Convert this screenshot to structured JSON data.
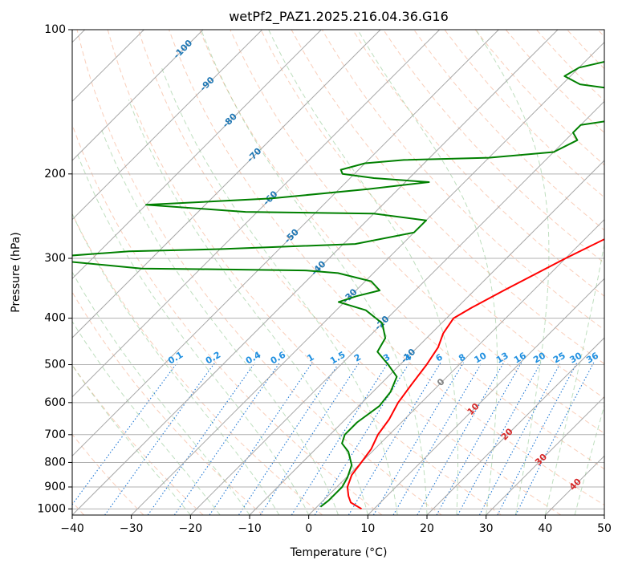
{
  "chart_data": {
    "type": "line",
    "title": "wetPf2_PAZ1.2025.216.04.36.G16",
    "xlabel": "Temperature (°C)",
    "ylabel": "Pressure (hPa)",
    "xlim": [
      -40,
      50
    ],
    "ylim": [
      1030,
      100
    ],
    "y_scale": "log",
    "grid": true,
    "x_ticks": [
      "−40",
      "−30",
      "−20",
      "−10",
      "0",
      "10",
      "20",
      "30",
      "40",
      "50"
    ],
    "y_ticks": [
      {
        "p": 100,
        "label": "100"
      },
      {
        "p": 200,
        "label": "200"
      },
      {
        "p": 300,
        "label": "300"
      },
      {
        "p": 400,
        "label": "400"
      },
      {
        "p": 500,
        "label": "500"
      },
      {
        "p": 600,
        "label": "600"
      },
      {
        "p": 700,
        "label": "700"
      },
      {
        "p": 800,
        "label": "800"
      },
      {
        "p": 900,
        "label": "900"
      },
      {
        "p": 1000,
        "label": "1000"
      }
    ],
    "series": [
      {
        "color": "#ff0000",
        "points": [
          {
            "t": 7.9,
            "p": 1000
          },
          {
            "t": 5.0,
            "p": 970
          },
          {
            "t": 3.5,
            "p": 940
          },
          {
            "t": 1.8,
            "p": 900
          },
          {
            "t": 0.5,
            "p": 850
          },
          {
            "t": 0.0,
            "p": 800
          },
          {
            "t": -0.6,
            "p": 750
          },
          {
            "t": -1.9,
            "p": 700
          },
          {
            "t": -2.6,
            "p": 650
          },
          {
            "t": -3.9,
            "p": 600
          },
          {
            "t": -4.7,
            "p": 550
          },
          {
            "t": -5.5,
            "p": 500
          },
          {
            "t": -6.5,
            "p": 460
          },
          {
            "t": -8.0,
            "p": 430
          },
          {
            "t": -8.8,
            "p": 400
          },
          {
            "t": -7.5,
            "p": 380
          },
          {
            "t": -5.0,
            "p": 350
          },
          {
            "t": 0.0,
            "p": 300
          },
          {
            "t": 4.5,
            "p": 265
          },
          {
            "t": 8.0,
            "p": 240
          },
          {
            "t": 12.0,
            "p": 200
          },
          {
            "t": 15.0,
            "p": 175
          },
          {
            "t": 17.5,
            "p": 155
          },
          {
            "t": 20.5,
            "p": 140
          },
          {
            "t": 24.0,
            "p": 125
          },
          {
            "t": 26.0,
            "p": 115
          },
          {
            "t": 27.0,
            "p": 107
          },
          {
            "t": 27.5,
            "p": 100
          }
        ]
      },
      {
        "color": "#008000",
        "points": [
          {
            "t": 0.6,
            "p": 990
          },
          {
            "t": 0.9,
            "p": 960
          },
          {
            "t": 0.9,
            "p": 900
          },
          {
            "t": 0.2,
            "p": 860
          },
          {
            "t": -1.2,
            "p": 810
          },
          {
            "t": -4.0,
            "p": 760
          },
          {
            "t": -6.5,
            "p": 730
          },
          {
            "t": -7.5,
            "p": 700
          },
          {
            "t": -7.5,
            "p": 660
          },
          {
            "t": -6.5,
            "p": 610
          },
          {
            "t": -7.0,
            "p": 570
          },
          {
            "t": -8.5,
            "p": 530
          },
          {
            "t": -12.0,
            "p": 500
          },
          {
            "t": -16.0,
            "p": 470
          },
          {
            "t": -17.0,
            "p": 440
          },
          {
            "t": -20.0,
            "p": 410
          },
          {
            "t": -25.0,
            "p": 385
          },
          {
            "t": -31.0,
            "p": 370
          },
          {
            "t": -29.0,
            "p": 360
          },
          {
            "t": -26.0,
            "p": 350
          },
          {
            "t": -29.0,
            "p": 335
          },
          {
            "t": -36.0,
            "p": 322
          },
          {
            "t": -42.0,
            "p": 318
          },
          {
            "t": -60.0,
            "p": 316
          },
          {
            "t": -70.0,
            "p": 315
          },
          {
            "t": -90.0,
            "p": 300
          },
          {
            "t": -75.0,
            "p": 290
          },
          {
            "t": -60.0,
            "p": 287
          },
          {
            "t": -38.0,
            "p": 280
          },
          {
            "t": -30.0,
            "p": 265
          },
          {
            "t": -30.0,
            "p": 250
          },
          {
            "t": -40.0,
            "p": 242
          },
          {
            "t": -62.0,
            "p": 240
          },
          {
            "t": -80.0,
            "p": 232
          },
          {
            "t": -60.0,
            "p": 225
          },
          {
            "t": -45.0,
            "p": 215
          },
          {
            "t": -36.0,
            "p": 208
          },
          {
            "t": -46.0,
            "p": 204
          },
          {
            "t": -52.0,
            "p": 200
          },
          {
            "t": -53.0,
            "p": 196
          },
          {
            "t": -50.0,
            "p": 190
          },
          {
            "t": -44.0,
            "p": 187
          },
          {
            "t": -30.0,
            "p": 185
          },
          {
            "t": -20.0,
            "p": 180
          },
          {
            "t": -18.0,
            "p": 170
          },
          {
            "t": -20.0,
            "p": 164
          },
          {
            "t": -20.0,
            "p": 158
          },
          {
            "t": -12.0,
            "p": 152
          },
          {
            "t": -10.0,
            "p": 143
          },
          {
            "t": -16.0,
            "p": 135
          },
          {
            "t": -27.0,
            "p": 130
          },
          {
            "t": -31.0,
            "p": 125
          },
          {
            "t": -30.0,
            "p": 120
          },
          {
            "t": -25.0,
            "p": 115
          },
          {
            "t": -14.0,
            "p": 107
          },
          {
            "t": -4.5,
            "p": 100
          }
        ]
      }
    ],
    "mixing_ratio_labels": [
      "0.1",
      "0.2",
      "0.4",
      "0.6",
      "1",
      "1.5",
      "2",
      "3",
      "4",
      "6",
      "8",
      "10",
      "13",
      "16",
      "20",
      "25",
      "30",
      "36"
    ],
    "mixing_ratio_values": [
      0.1,
      0.2,
      0.4,
      0.6,
      1,
      1.5,
      2,
      3,
      4,
      6,
      8,
      10,
      13,
      16,
      20,
      25,
      30,
      36
    ],
    "isotherm_labels": [
      {
        "text": "-100",
        "t": -100,
        "p": 110
      },
      {
        "text": "-90",
        "t": -90,
        "p": 130
      },
      {
        "text": "-80",
        "t": -80,
        "p": 155
      },
      {
        "text": "-70",
        "t": -70,
        "p": 183
      },
      {
        "text": "-60",
        "t": -60,
        "p": 225
      },
      {
        "text": "-50",
        "t": -50,
        "p": 270
      },
      {
        "text": "-40",
        "t": -40,
        "p": 315
      },
      {
        "text": "-30",
        "t": -30,
        "p": 360
      },
      {
        "text": "-20",
        "t": -20,
        "p": 410
      },
      {
        "text": "-10",
        "t": -10,
        "p": 480
      },
      {
        "text": "0",
        "t": 0,
        "p": 545
      },
      {
        "text": "10",
        "t": 10,
        "p": 620
      },
      {
        "text": "20",
        "t": 20,
        "p": 700
      },
      {
        "text": "30",
        "t": 30,
        "p": 790
      },
      {
        "text": "40",
        "t": 40,
        "p": 890
      }
    ]
  }
}
